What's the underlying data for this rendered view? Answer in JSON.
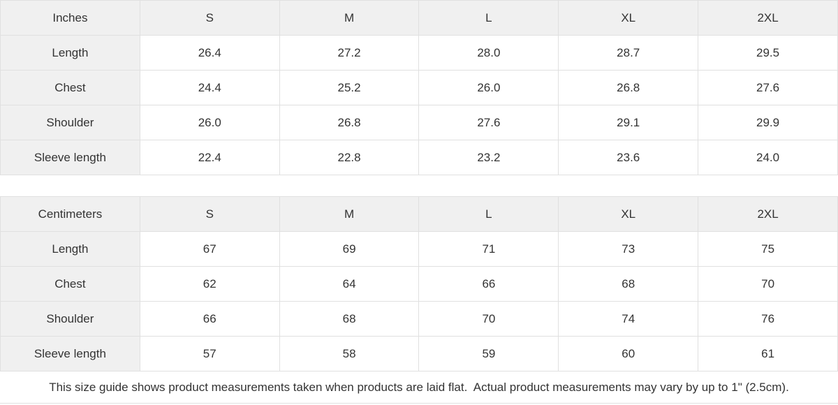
{
  "tables": [
    {
      "unit": "Inches",
      "sizes": [
        "S",
        "M",
        "L",
        "XL",
        "2XL"
      ],
      "rows": [
        {
          "label": "Length",
          "values": [
            "26.4",
            "27.2",
            "28.0",
            "28.7",
            "29.5"
          ]
        },
        {
          "label": "Chest",
          "values": [
            "24.4",
            "25.2",
            "26.0",
            "26.8",
            "27.6"
          ]
        },
        {
          "label": "Shoulder",
          "values": [
            "26.0",
            "26.8",
            "27.6",
            "29.1",
            "29.9"
          ]
        },
        {
          "label": "Sleeve length",
          "values": [
            "22.4",
            "22.8",
            "23.2",
            "23.6",
            "24.0"
          ]
        }
      ]
    },
    {
      "unit": "Centimeters",
      "sizes": [
        "S",
        "M",
        "L",
        "XL",
        "2XL"
      ],
      "rows": [
        {
          "label": "Length",
          "values": [
            "67",
            "69",
            "71",
            "73",
            "75"
          ]
        },
        {
          "label": "Chest",
          "values": [
            "62",
            "64",
            "66",
            "68",
            "70"
          ]
        },
        {
          "label": "Shoulder",
          "values": [
            "66",
            "68",
            "70",
            "74",
            "76"
          ]
        },
        {
          "label": "Sleeve length",
          "values": [
            "57",
            "58",
            "59",
            "60",
            "61"
          ]
        }
      ]
    }
  ],
  "footer": {
    "note": "This size guide shows product measurements taken when products are laid flat.  Actual product measurements may vary by up to 1\" (2.5cm)."
  },
  "colors": {
    "header_bg": "#f0f0f0",
    "cell_bg": "#ffffff",
    "border": "#e0e0e0",
    "text": "#333333"
  }
}
